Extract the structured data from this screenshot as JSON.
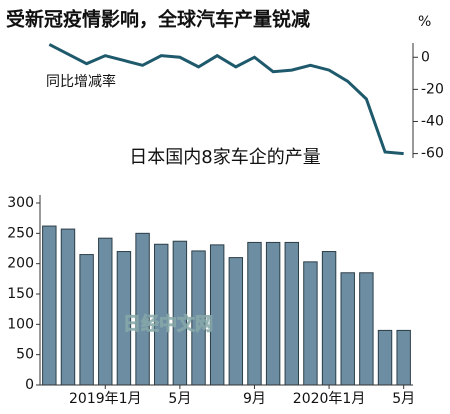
{
  "chart_data": [
    {
      "type": "line",
      "title": "受新冠疫情影响，全球汽车产量锐减",
      "unit": "%",
      "annotation": "同比增减率",
      "values": [
        8,
        2,
        -4,
        1,
        -2,
        -5,
        1,
        0,
        -6,
        1,
        -6,
        0,
        -9,
        -8,
        -5,
        -8,
        -15,
        -26,
        -59,
        -60
      ],
      "color": "#1e5a6c",
      "ylim": [
        -64,
        12
      ],
      "yticks": [
        0,
        -20,
        -40,
        -60
      ]
    },
    {
      "type": "bar",
      "title": "日本国内8家车企的产量",
      "watermark": "日经中文网",
      "categories": [
        null,
        null,
        null,
        "2019年1月",
        null,
        null,
        null,
        "5月",
        null,
        null,
        null,
        "9月",
        null,
        null,
        null,
        "2020年1月",
        null,
        null,
        null,
        "5月"
      ],
      "values": [
        262,
        257,
        215,
        242,
        220,
        250,
        232,
        237,
        221,
        231,
        210,
        235,
        235,
        235,
        203,
        220,
        185,
        185,
        90,
        90
      ],
      "color": "#6d8ea2",
      "ylim": [
        0,
        300
      ],
      "yticks": [
        0,
        50,
        100,
        150,
        200,
        250,
        300
      ]
    }
  ]
}
